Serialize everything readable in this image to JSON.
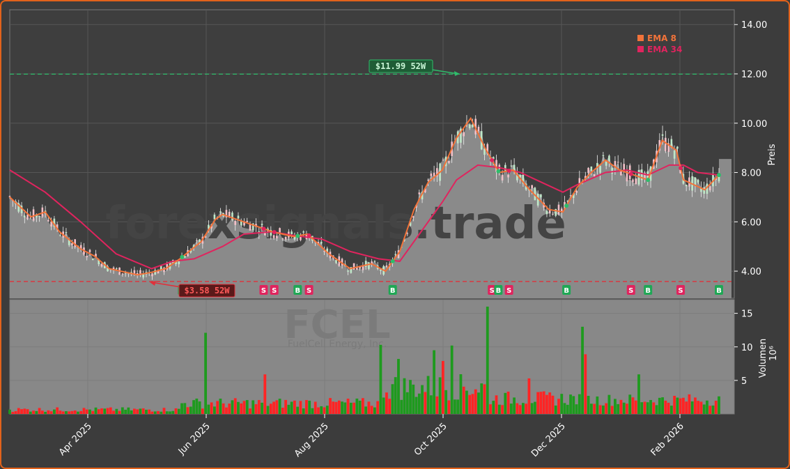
{
  "chart_data": [
    {
      "type": "candlestick",
      "ticker": "FCEL",
      "watermark": "forexsignals.trade",
      "ylabel": "Preis",
      "ylim": [
        2.9,
        14.6
      ],
      "yticks": [
        "4.00",
        "6.00",
        "8.00",
        "10.00",
        "12.00",
        "14.00"
      ],
      "xticks": [
        "Apr 2025",
        "Jun 2025",
        "Aug 2025",
        "Oct 2025",
        "Dec 2025",
        "Feb 2026"
      ],
      "legend": [
        {
          "name": "EMA 8",
          "color": "#f2733a"
        },
        {
          "name": "EMA 34",
          "color": "#e0245e"
        }
      ],
      "annotations": {
        "high_52w": {
          "label": "$11.99 52W",
          "value": 11.99,
          "color": "#2ebd6b"
        },
        "low_52w": {
          "label": "$3.58 52W",
          "value": 3.58,
          "color": "#e0303a"
        }
      },
      "signals": [
        {
          "t": 0.243,
          "type": "B"
        },
        {
          "t": 0.358,
          "type": "S"
        },
        {
          "t": 0.373,
          "type": "S"
        },
        {
          "t": 0.406,
          "type": "B"
        },
        {
          "t": 0.422,
          "type": "S"
        },
        {
          "t": 0.54,
          "type": "B"
        },
        {
          "t": 0.68,
          "type": "S"
        },
        {
          "t": 0.689,
          "type": "B"
        },
        {
          "t": 0.704,
          "type": "S"
        },
        {
          "t": 0.785,
          "type": "B"
        },
        {
          "t": 0.876,
          "type": "S"
        },
        {
          "t": 0.9,
          "type": "B"
        },
        {
          "t": 0.946,
          "type": "S"
        },
        {
          "t": 1.0,
          "type": "B"
        }
      ],
      "series": [
        {
          "name": "EMA 8",
          "points": [
            [
              0,
              7.0
            ],
            [
              0.03,
              6.2
            ],
            [
              0.05,
              6.4
            ],
            [
              0.07,
              5.6
            ],
            [
              0.1,
              4.9
            ],
            [
              0.12,
              4.6
            ],
            [
              0.14,
              4.1
            ],
            [
              0.18,
              3.85
            ],
            [
              0.2,
              3.95
            ],
            [
              0.22,
              4.1
            ],
            [
              0.24,
              4.5
            ],
            [
              0.27,
              5.2
            ],
            [
              0.29,
              6.1
            ],
            [
              0.3,
              6.3
            ],
            [
              0.34,
              5.9
            ],
            [
              0.37,
              5.6
            ],
            [
              0.4,
              5.4
            ],
            [
              0.42,
              5.5
            ],
            [
              0.45,
              4.7
            ],
            [
              0.48,
              4.1
            ],
            [
              0.51,
              4.3
            ],
            [
              0.53,
              4.0
            ],
            [
              0.55,
              4.8
            ],
            [
              0.57,
              6.5
            ],
            [
              0.59,
              7.6
            ],
            [
              0.61,
              8.1
            ],
            [
              0.63,
              9.4
            ],
            [
              0.65,
              10.2
            ],
            [
              0.67,
              9.0
            ],
            [
              0.69,
              8.0
            ],
            [
              0.71,
              8.1
            ],
            [
              0.73,
              7.4
            ],
            [
              0.76,
              6.5
            ],
            [
              0.78,
              6.4
            ],
            [
              0.8,
              7.4
            ],
            [
              0.82,
              8.0
            ],
            [
              0.84,
              8.5
            ],
            [
              0.86,
              8.1
            ],
            [
              0.88,
              7.9
            ],
            [
              0.9,
              7.7
            ],
            [
              0.92,
              9.3
            ],
            [
              0.94,
              8.9
            ],
            [
              0.95,
              7.7
            ],
            [
              0.98,
              7.3
            ],
            [
              1.0,
              7.9
            ]
          ]
        },
        {
          "name": "EMA 34",
          "points": [
            [
              0,
              8.1
            ],
            [
              0.05,
              7.2
            ],
            [
              0.1,
              6.0
            ],
            [
              0.15,
              4.7
            ],
            [
              0.2,
              4.1
            ],
            [
              0.23,
              4.4
            ],
            [
              0.26,
              4.5
            ],
            [
              0.3,
              5.0
            ],
            [
              0.33,
              5.5
            ],
            [
              0.37,
              5.6
            ],
            [
              0.4,
              5.45
            ],
            [
              0.44,
              5.3
            ],
            [
              0.48,
              4.8
            ],
            [
              0.52,
              4.5
            ],
            [
              0.55,
              4.4
            ],
            [
              0.58,
              5.6
            ],
            [
              0.61,
              6.8
            ],
            [
              0.63,
              7.7
            ],
            [
              0.66,
              8.3
            ],
            [
              0.69,
              8.2
            ],
            [
              0.72,
              8.0
            ],
            [
              0.75,
              7.6
            ],
            [
              0.78,
              7.2
            ],
            [
              0.8,
              7.5
            ],
            [
              0.84,
              8.0
            ],
            [
              0.87,
              8.1
            ],
            [
              0.9,
              7.9
            ],
            [
              0.93,
              8.3
            ],
            [
              0.95,
              8.3
            ],
            [
              0.97,
              8.0
            ],
            [
              1.0,
              7.9
            ]
          ]
        }
      ]
    },
    {
      "type": "bar",
      "ticker": "FCEL",
      "subtitle": "FuelCell Energy, Inc.",
      "ylabel": "Volumen",
      "yunit": "10⁶",
      "ylim": [
        0,
        16
      ],
      "yticks": [
        "5",
        "10",
        "15"
      ],
      "colors": {
        "up": "#1e9a1e",
        "down": "#ff2424"
      },
      "spikes": [
        {
          "t": 0.276,
          "value": 12.1,
          "dir": "up"
        },
        {
          "t": 0.359,
          "value": 5.9,
          "dir": "down"
        },
        {
          "t": 0.525,
          "value": 10.3,
          "dir": "up"
        },
        {
          "t": 0.548,
          "value": 8.2,
          "dir": "up"
        },
        {
          "t": 0.597,
          "value": 9.5,
          "dir": "up"
        },
        {
          "t": 0.61,
          "value": 7.9,
          "dir": "down"
        },
        {
          "t": 0.622,
          "value": 10.2,
          "dir": "up"
        },
        {
          "t": 0.675,
          "value": 16.0,
          "dir": "up"
        },
        {
          "t": 0.734,
          "value": 5.3,
          "dir": "down"
        },
        {
          "t": 0.807,
          "value": 13.0,
          "dir": "up"
        },
        {
          "t": 0.813,
          "value": 8.9,
          "dir": "down"
        },
        {
          "t": 0.887,
          "value": 5.9,
          "dir": "up"
        }
      ]
    }
  ]
}
